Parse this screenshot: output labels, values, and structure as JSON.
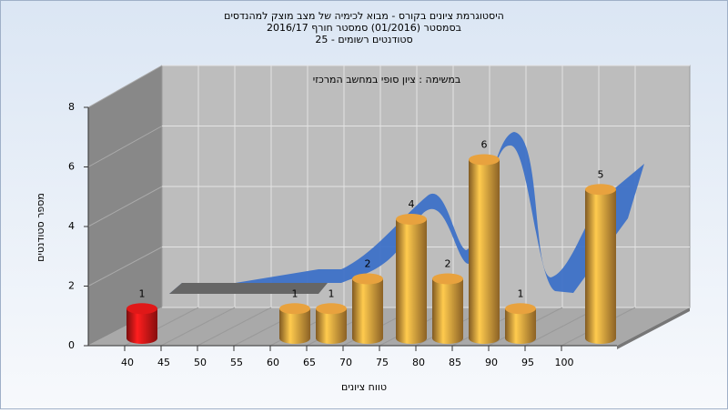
{
  "chart_data": {
    "type": "bar",
    "title": [
      "היסטוגרמת ציונים בקורס - מבוא לכימיה של מצב מוצק למהנדסים",
      "בסמסטר  (01/2016)  סמסטר חורף 2016/17",
      "סטודנטים רשומים - 25"
    ],
    "subtitle": "במשימה : ציון סופי במחשב המרכזי",
    "x_label": "טווח ציונים",
    "y_label": "מספר סטודנטים",
    "x": [
      42,
      63,
      68,
      73,
      79,
      84,
      89,
      94,
      105
    ],
    "values": [
      1,
      1,
      1,
      2,
      4,
      2,
      6,
      1,
      5
    ],
    "colors": [
      "#e01818",
      "#e8a23e",
      "#e8a23e",
      "#e8a23e",
      "#e8a23e",
      "#e8a23e",
      "#e8a23e",
      "#e8a23e",
      "#e8a23e"
    ],
    "xlim": [
      35,
      107
    ],
    "xticks": [
      40,
      45,
      50,
      55,
      60,
      65,
      70,
      75,
      80,
      85,
      90,
      95,
      100
    ],
    "ylim": [
      0,
      8
    ],
    "yticks": [
      0,
      2,
      4,
      6,
      8
    ],
    "grid": true
  }
}
